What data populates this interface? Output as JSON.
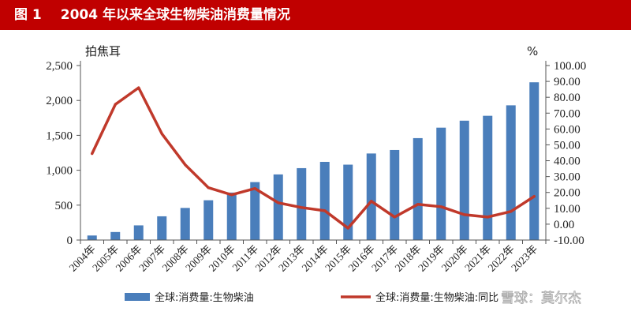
{
  "figure": {
    "label": "图 1",
    "title": "2004 年以来全球生物柴油消费量情况"
  },
  "watermark": "雪球：莫尔杰",
  "chart_data": {
    "type": "bar+line",
    "categories": [
      "2004年",
      "2005年",
      "2006年",
      "2007年",
      "2008年",
      "2009年",
      "2010年",
      "2011年",
      "2012年",
      "2013年",
      "2014年",
      "2015年",
      "2016年",
      "2017年",
      "2018年",
      "2019年",
      "2020年",
      "2021年",
      "2022年",
      "2023年"
    ],
    "left_axis": {
      "unit": "拍焦耳",
      "ylim": [
        0,
        2500
      ],
      "ticks": [
        0,
        500,
        1000,
        1500,
        2000,
        2500
      ],
      "tick_labels": [
        "0",
        "500",
        "1,000",
        "1,500",
        "2,000",
        "2,500"
      ]
    },
    "right_axis": {
      "unit": "%",
      "ylim": [
        -10,
        100
      ],
      "ticks": [
        -10,
        0,
        10,
        20,
        30,
        40,
        50,
        60,
        70,
        80,
        90,
        100
      ],
      "tick_labels": [
        "-10.00",
        "0.00",
        "10.00",
        "20.00",
        "30.00",
        "40.00",
        "50.00",
        "60.00",
        "70.00",
        "80.00",
        "90.00",
        "100.00"
      ]
    },
    "series": [
      {
        "name": "全球:消费量:生物柴油",
        "type": "bar",
        "axis": "left",
        "color": "#4a7ebb",
        "values": [
          65,
          115,
          210,
          340,
          460,
          570,
          680,
          830,
          940,
          1030,
          1120,
          1080,
          1240,
          1290,
          1460,
          1610,
          1710,
          1780,
          1930,
          2260
        ]
      },
      {
        "name": "全球:消费量:生物柴油:同比",
        "type": "line",
        "axis": "right",
        "color": "#c0392b",
        "values": [
          44.5,
          75.5,
          86.0,
          57.0,
          37.5,
          23.0,
          18.5,
          22.5,
          13.5,
          10.5,
          8.5,
          -2.5,
          14.5,
          4.5,
          12.5,
          11.0,
          6.0,
          4.5,
          8.0,
          17.5
        ]
      }
    ]
  }
}
